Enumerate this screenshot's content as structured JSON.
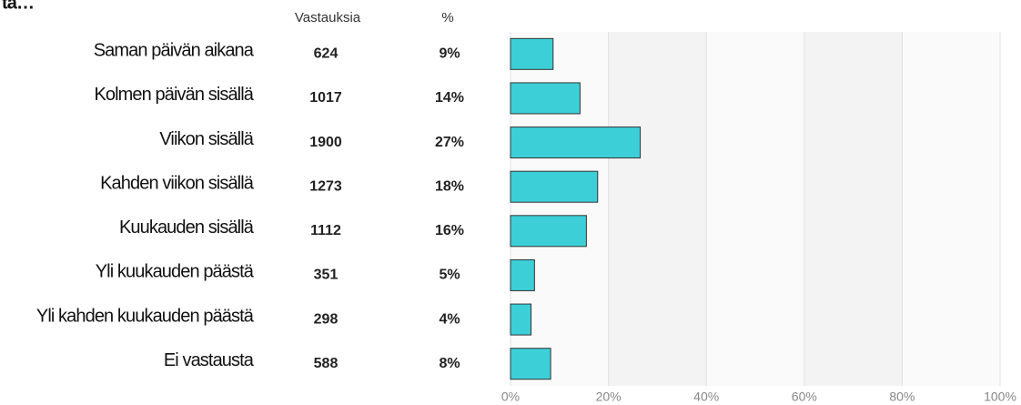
{
  "chart_data": {
    "type": "bar",
    "orientation": "horizontal",
    "title": "ta…",
    "column_headers": [
      "Vastauksia",
      "%"
    ],
    "categories": [
      "Saman päivän aikana",
      "Kolmen päivän sisällä",
      "Viikon sisällä",
      "Kahden viikon sisällä",
      "Kuukauden sisällä",
      "Yli kuukauden päästä",
      "Yli kahden kuukauden päästä",
      "Ei vastausta"
    ],
    "counts": [
      624,
      1017,
      1900,
      1273,
      1112,
      351,
      298,
      588
    ],
    "values": [
      8.7,
      14.2,
      26.5,
      17.8,
      15.5,
      4.9,
      4.2,
      8.2
    ],
    "value_labels": [
      "9%",
      "14%",
      "27%",
      "18%",
      "16%",
      "5%",
      "4%",
      "8%"
    ],
    "color": "#3ccfd8",
    "xlim": [
      0,
      100
    ],
    "xticks": [
      {
        "value": 0,
        "label": "0%"
      },
      {
        "value": 20,
        "label": "20%"
      },
      {
        "value": 40,
        "label": "40%"
      },
      {
        "value": 60,
        "label": "60%"
      },
      {
        "value": 80,
        "label": "80%"
      },
      {
        "value": 100,
        "label": "100%"
      }
    ],
    "grid": true
  }
}
